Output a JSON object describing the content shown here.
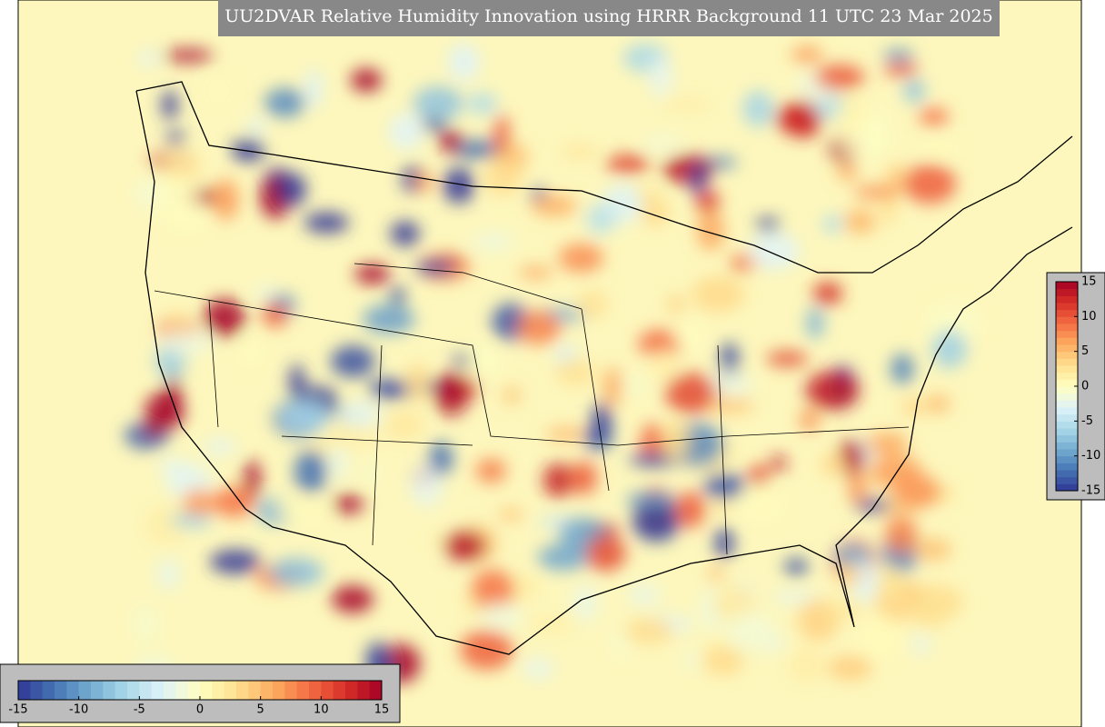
{
  "title": "UU2DVAR Relative Humidity Innovation using HRRR Background 11 UTC 23 Mar 2025",
  "colorbars": [
    {
      "orientation": "horizontal",
      "lim": [
        -15,
        15
      ],
      "ticks": [
        -15,
        -10,
        -5,
        0,
        5,
        10,
        15
      ]
    },
    {
      "orientation": "vertical",
      "lim": [
        -15,
        15
      ],
      "ticks": [
        -15,
        -10,
        -5,
        0,
        5,
        10,
        15
      ]
    }
  ],
  "colors": [
    "#313695",
    "#4575b4",
    "#74add1",
    "#abd9e9",
    "#e0f3f8",
    "#ffffbf",
    "#fee090",
    "#fdae61",
    "#f46d43",
    "#d73027",
    "#a50026"
  ]
}
